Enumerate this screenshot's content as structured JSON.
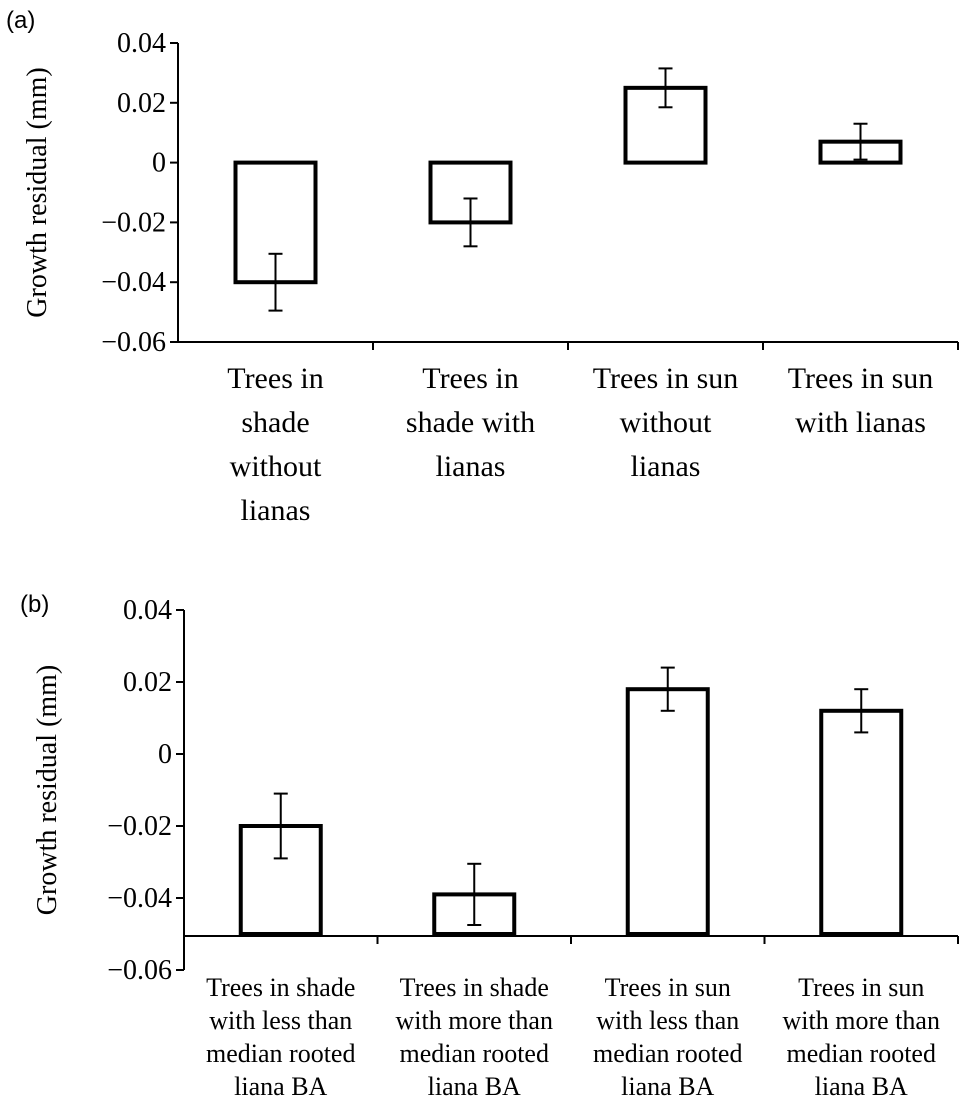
{
  "chart_data": [
    {
      "panel": "(a)",
      "type": "bar",
      "ylabel": "Growth residual (mm)",
      "xlabel": "",
      "ylim": [
        -0.06,
        0.04
      ],
      "yticks": [
        "0.04",
        "0.02",
        "0",
        "−0.02",
        "−0.04",
        "−0.06"
      ],
      "categories": [
        [
          "Trees in",
          "shade",
          "without",
          "lianas"
        ],
        [
          "Trees in",
          "shade with",
          "lianas"
        ],
        [
          "Trees in sun",
          "without",
          "lianas"
        ],
        [
          "Trees in sun",
          "with lianas"
        ]
      ],
      "values": [
        -0.04,
        -0.02,
        0.025,
        0.007
      ],
      "errors": [
        0.0095,
        0.008,
        0.0065,
        0.006
      ],
      "bar_baseline": 0,
      "grid": false,
      "legend": "none"
    },
    {
      "panel": "(b)",
      "type": "bar",
      "ylabel": "Growth residual (mm)",
      "xlabel": "",
      "ylim": [
        -0.06,
        0.04
      ],
      "yticks": [
        "0.04",
        "0.02",
        "0",
        "−0.02",
        "−0.04",
        "−0.06"
      ],
      "categories": [
        [
          "Trees in shade",
          "with less than",
          "median rooted",
          "liana BA"
        ],
        [
          "Trees in shade",
          "with more than",
          "median rooted",
          "liana BA"
        ],
        [
          "Trees in sun",
          "with less than",
          "median rooted",
          "liana BA"
        ],
        [
          "Trees in sun",
          "with more than",
          "median rooted",
          "liana BA"
        ]
      ],
      "values": [
        -0.02,
        -0.039,
        0.018,
        0.012
      ],
      "errors": [
        0.009,
        0.0085,
        0.006,
        0.006
      ],
      "bar_baseline": -0.05,
      "grid": false,
      "legend": "none"
    }
  ]
}
